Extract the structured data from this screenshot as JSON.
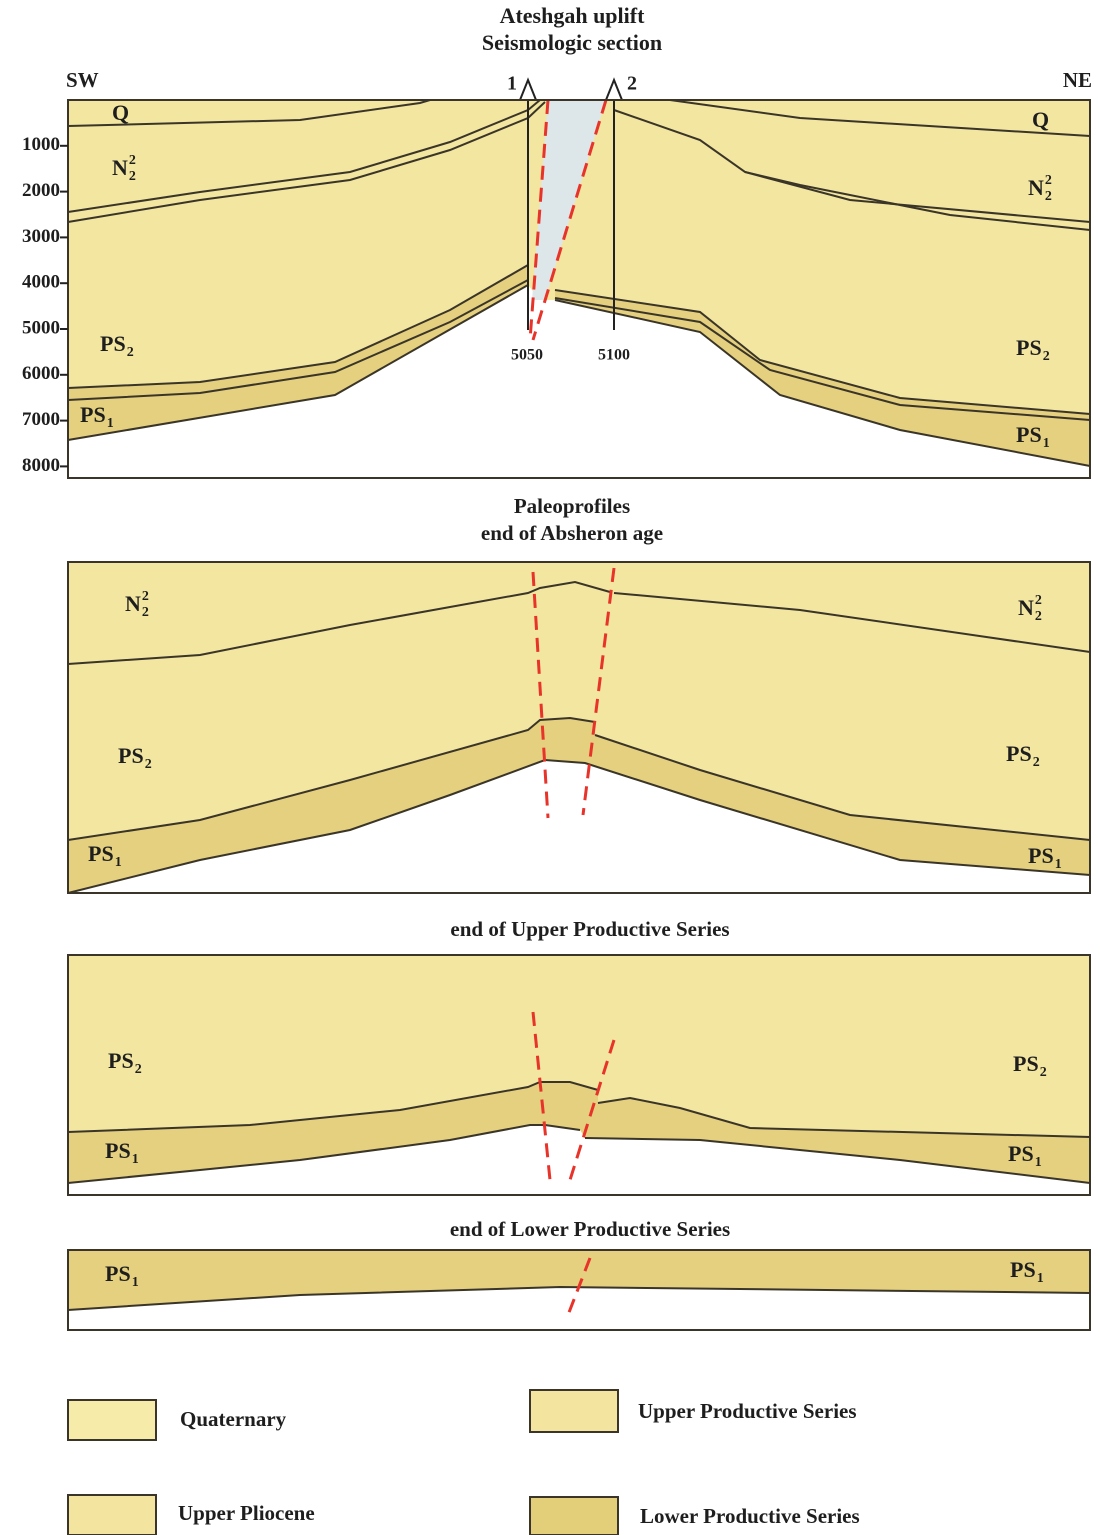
{
  "header": {
    "title": "Ateshgah uplift",
    "subtitle": "Seismologic section"
  },
  "section": {
    "left": "SW",
    "right": "NE",
    "wells": [
      "1",
      "2"
    ],
    "well_depths": [
      "5050",
      "5100"
    ],
    "depth_ticks": [
      1000,
      2000,
      3000,
      4000,
      5000,
      6000,
      7000,
      8000
    ],
    "labels": [
      {
        "text": "Q"
      },
      {
        "text": "N",
        "sub": "2",
        "sup": "2"
      },
      {
        "text": "PS",
        "sub": "2"
      },
      {
        "text": "PS",
        "sub": "1"
      },
      {
        "text": "Q"
      },
      {
        "text": "N",
        "sub": "2",
        "sup": "2"
      },
      {
        "text": "PS",
        "sub": "2"
      },
      {
        "text": "PS",
        "sub": "1"
      }
    ]
  },
  "paleoprofiles": {
    "title": "Paleoprofiles",
    "panels": [
      {
        "title": "end of Absheron age",
        "labels": [
          {
            "text": "N",
            "sub": "2",
            "sup": "2"
          },
          {
            "text": "N",
            "sub": "2",
            "sup": "2"
          },
          {
            "text": "PS",
            "sub": "2"
          },
          {
            "text": "PS",
            "sub": "2"
          },
          {
            "text": "PS",
            "sub": "1"
          },
          {
            "text": "PS",
            "sub": "1"
          }
        ]
      },
      {
        "title": "end of Upper Productive Series",
        "labels": [
          {
            "text": "PS",
            "sub": "2"
          },
          {
            "text": "PS",
            "sub": "2"
          },
          {
            "text": "PS",
            "sub": "1"
          },
          {
            "text": "PS",
            "sub": "1"
          }
        ]
      },
      {
        "title": "end of Lower Productive Series",
        "labels": [
          {
            "text": "PS",
            "sub": "1"
          },
          {
            "text": "PS",
            "sub": "1"
          }
        ]
      }
    ]
  },
  "legend": [
    "Quaternary",
    "Upper Productive Series",
    "Upper Pliocene",
    "Lower Productive Series"
  ]
}
